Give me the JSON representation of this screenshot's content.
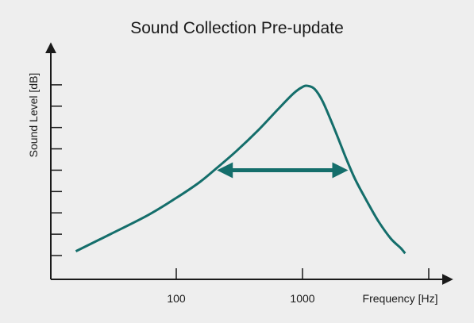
{
  "chart_data": {
    "type": "line",
    "title": "Sound Collection Pre-update",
    "xlabel": "Frequency [Hz]",
    "ylabel": "Sound Level [dB]",
    "x_scale": "log",
    "xlim": [
      14,
      7500
    ],
    "ylim": [
      0,
      9
    ],
    "x_ticks": [
      100,
      1000
    ],
    "x_tick_labels": [
      "100",
      "1000"
    ],
    "y_ticks": [
      1,
      2,
      3,
      4,
      5,
      6,
      7,
      8,
      9
    ],
    "y_tick_labels_shown": false,
    "grid": false,
    "legend": "none",
    "series": [
      {
        "color": "#146e6b",
        "x": [
          16,
          30,
          60,
          100,
          150,
          200,
          300,
          450,
          650,
          850,
          1000,
          1100,
          1250,
          1450,
          1800,
          2200,
          2600,
          3200,
          4000,
          5000,
          6000,
          6500
        ],
        "y": [
          0.2,
          1.0,
          1.9,
          2.7,
          3.4,
          4.0,
          4.9,
          5.9,
          6.9,
          7.6,
          7.9,
          7.95,
          7.8,
          7.2,
          5.9,
          4.6,
          3.6,
          2.6,
          1.6,
          0.8,
          0.35,
          0.1
        ]
      }
    ],
    "annotations": [
      {
        "type": "double-arrow",
        "x_start": 210,
        "x_end": 2300,
        "y": 4.0,
        "color": "#146e6b"
      }
    ]
  }
}
